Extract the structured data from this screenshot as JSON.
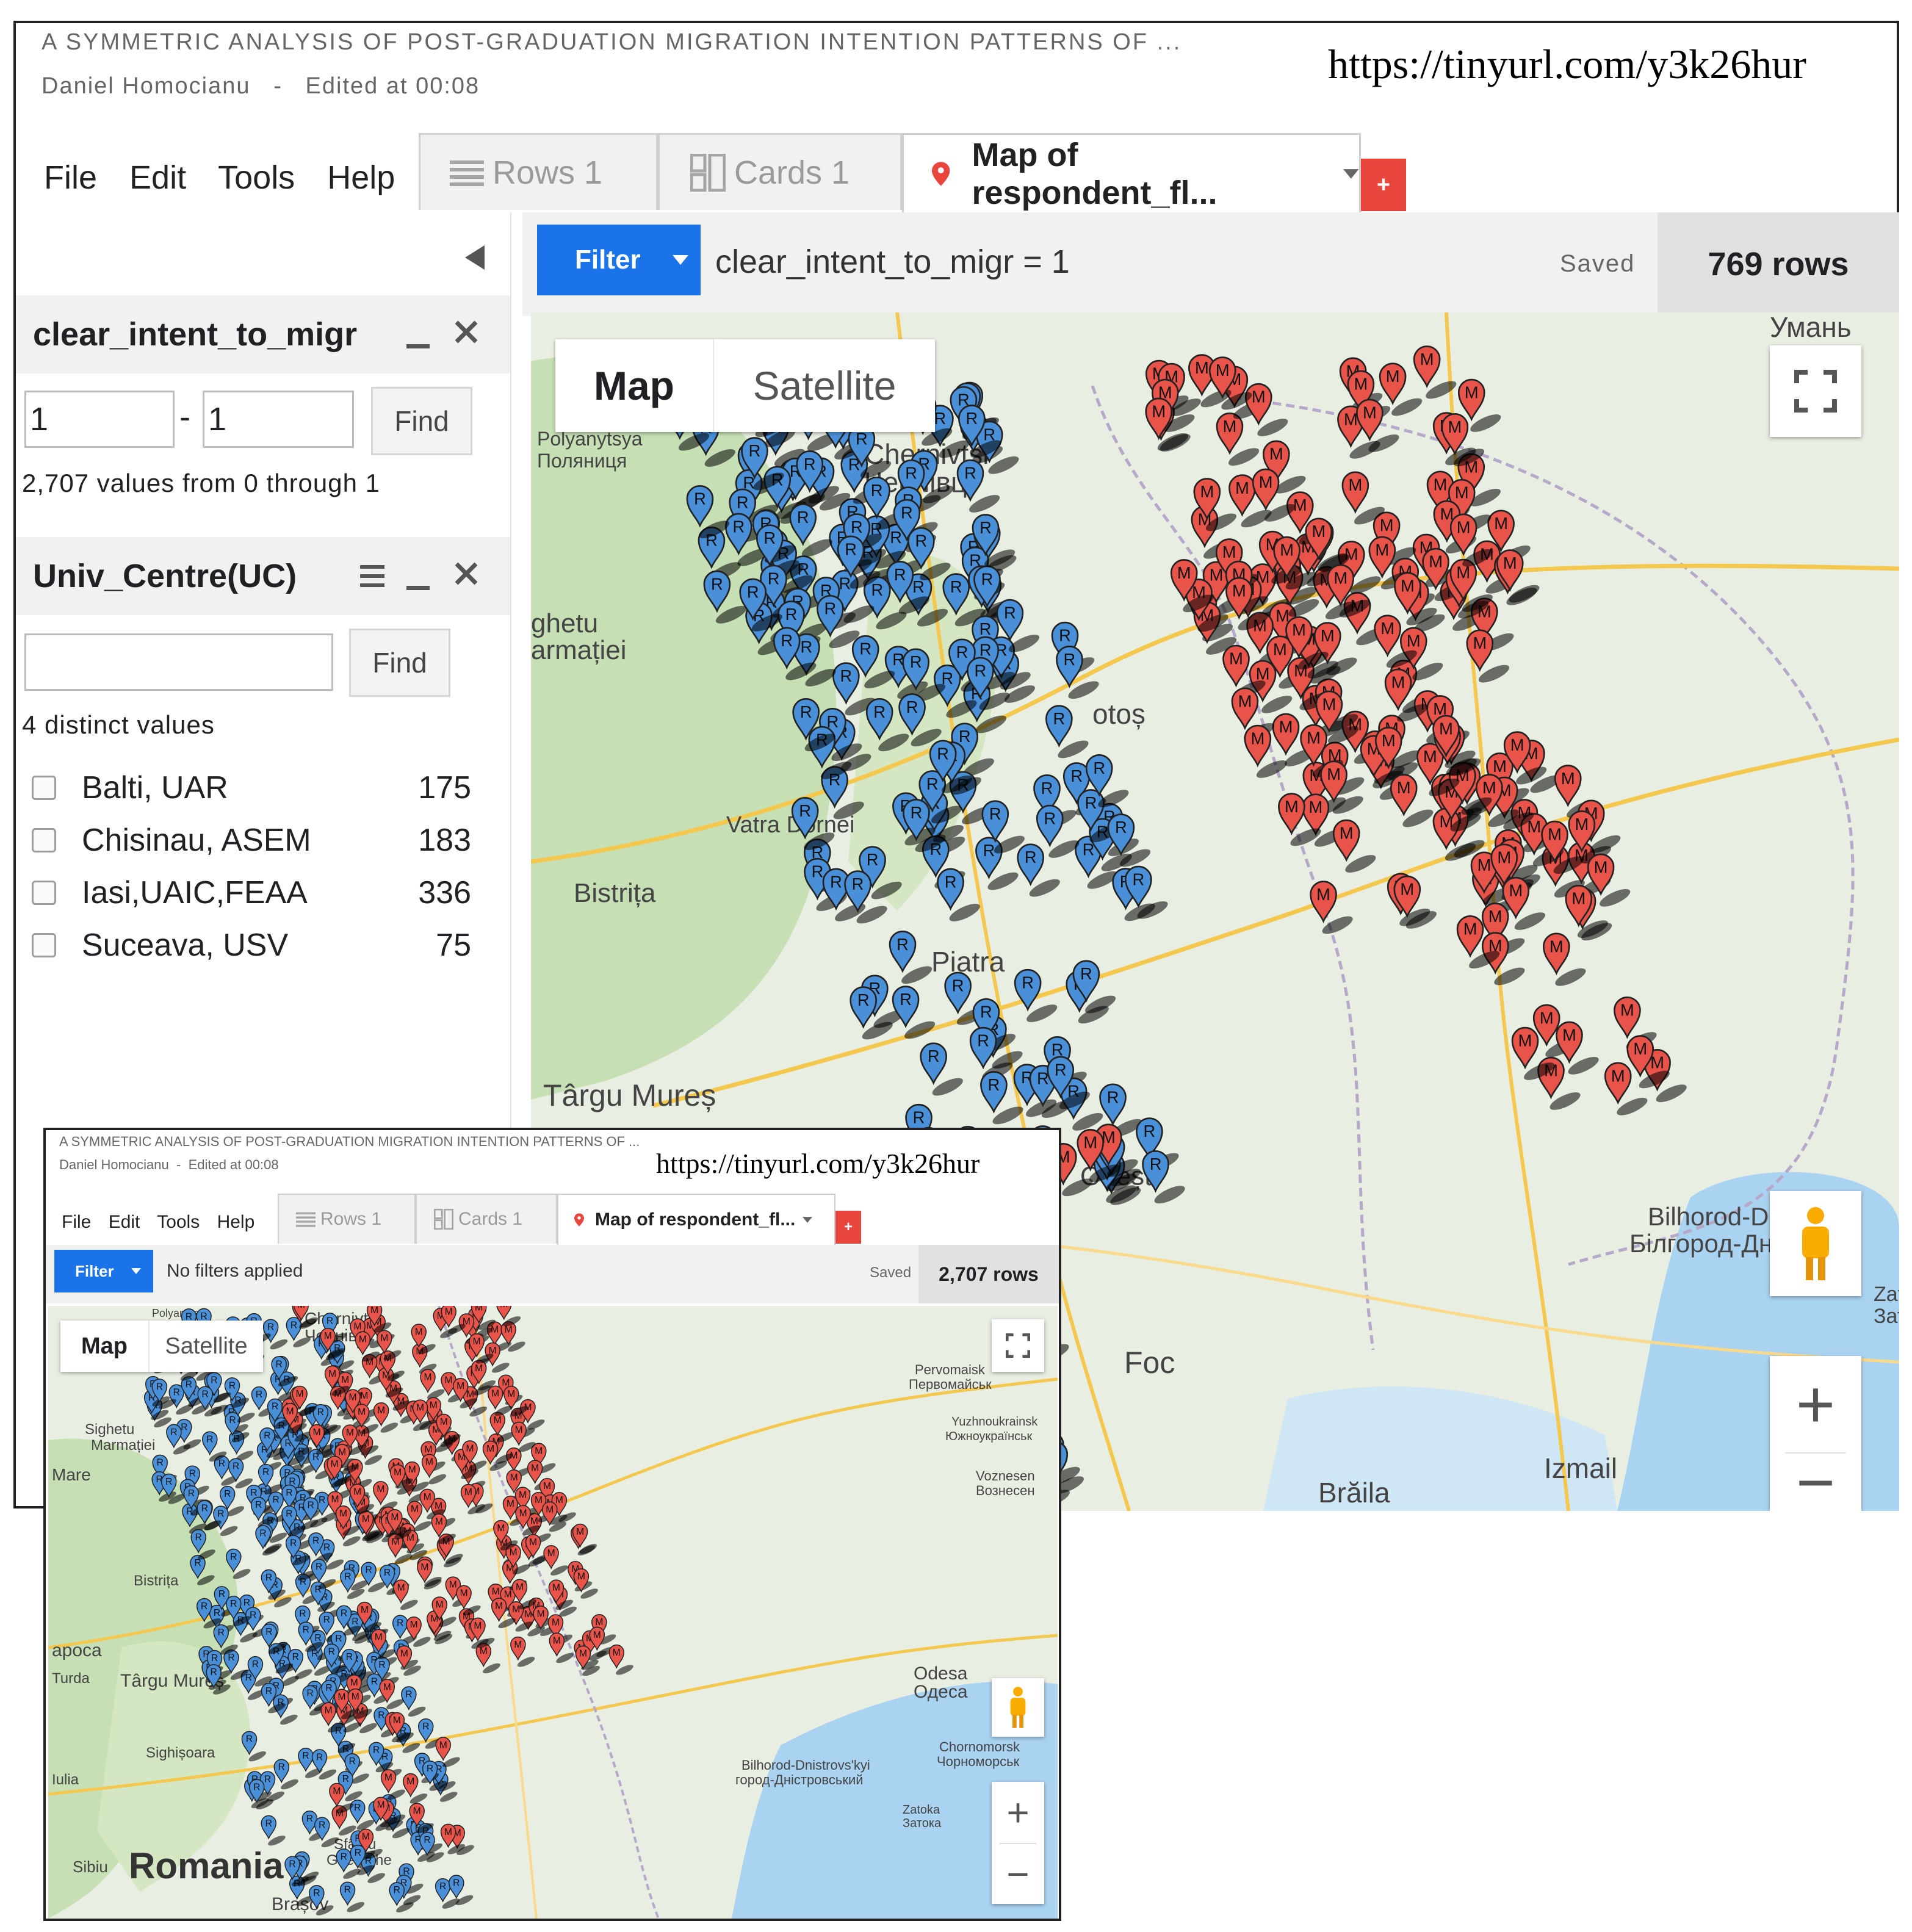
{
  "main": {
    "doc_title": "A SYMMETRIC ANALYSIS OF POST-GRADUATION MIGRATION INTENTION PATTERNS OF ...",
    "author": "Daniel Homocianu",
    "separator": "-",
    "edited": "Edited at 00:08",
    "url": "https://tinyurl.com/y3k26hur",
    "menu": [
      "File",
      "Edit",
      "Tools",
      "Help"
    ],
    "tabs": {
      "rows": "Rows 1",
      "cards": "Cards 1",
      "map": "Map of respondent_fl..."
    },
    "add_tab": "+",
    "filter_button": "Filter",
    "filter_expression": "clear_intent_to_migr = 1",
    "saved": "Saved",
    "row_count": "769 rows",
    "panel1": {
      "title": "clear_intent_to_migr",
      "min_value": "1",
      "dash": "-",
      "max_value": "1",
      "find": "Find",
      "summary": "2,707 values from 0 through 1"
    },
    "panel2": {
      "title": "Univ_Centre(UC)",
      "search_value": "",
      "find": "Find",
      "summary": "4 distinct values",
      "items": [
        {
          "label": "Balti, UAR",
          "count": "175"
        },
        {
          "label": "Chisinau, ASEM",
          "count": "183"
        },
        {
          "label": "Iasi,UAIC,FEAA",
          "count": "336"
        },
        {
          "label": "Suceava, USV",
          "count": "75"
        }
      ]
    },
    "map_toggle": {
      "map": "Map",
      "satellite": "Satellite"
    },
    "zoom_in": "+",
    "zoom_out": "−",
    "places": {
      "uman": "Умань",
      "polyanytsya": "Polyanytsya",
      "polyanytsya_cyr": "Поляниця",
      "chernivtsi": "Chernivtsi",
      "chernivtsi_cyr": "Чернівці",
      "sighetu": "ghetu",
      "marmatiei": "armației",
      "botosani": "otoș",
      "vatra": "Vatra Dornei",
      "bistrita": "Bistrița",
      "piatra": "Piatra",
      "targu": "Târgu Mureș",
      "onesti": "Onești",
      "focsani": "Foc",
      "braila": "Brăila",
      "izmail": "Izmail",
      "bilhorod": "Bilhorod-Dnistro",
      "bilhorod_cyr": "Білгород-Дністровс",
      "zato": "Zato",
      "zato_cyr": "Зато"
    }
  },
  "inset": {
    "doc_title": "A SYMMETRIC ANALYSIS OF POST-GRADUATION MIGRATION INTENTION PATTERNS OF ...",
    "author": "Daniel Homocianu",
    "separator": "-",
    "edited": "Edited at 00:08",
    "url": "https://tinyurl.com/y3k26hur",
    "menu": [
      "File",
      "Edit",
      "Tools",
      "Help"
    ],
    "tabs": {
      "rows": "Rows 1",
      "cards": "Cards 1",
      "map": "Map of respondent_fl..."
    },
    "add_tab": "+",
    "filter_button": "Filter",
    "filter_expression": "No filters applied",
    "saved": "Saved",
    "row_count": "2,707 rows",
    "map_toggle": {
      "map": "Map",
      "satellite": "Satellite"
    },
    "zoom_in": "+",
    "zoom_out": "−",
    "places": {
      "polyanytsya": "Polyanytsya",
      "chernivtsi": "Chernivtsi",
      "chernivtsi_cyr": "Чернівці",
      "sighetu": "Sighetu",
      "marmatiei": "Marmației",
      "mare": "Mare",
      "bistrita": "Bistrița",
      "apoca": "apoca",
      "turda": "Turda",
      "targu": "Târgu Mureș",
      "sighisoara": "Sighișoara",
      "iulia": "Iulia",
      "sibiu": "Sibiu",
      "romania": "Romania",
      "sfantu": "Sfântu",
      "gheorghe": "Gheorghe",
      "brasov": "Brașov",
      "pervomaisk": "Pervomaisk",
      "pervomaisk_cyr": "Первомайськ",
      "yuzhnoukrainsk": "Yuzhnoukrainsk",
      "yuzhnoukrainsk_cyr": "Южноукраїнськ",
      "voznesensk": "Voznesen",
      "voznesensk_cyr": "Вознесен",
      "odesa": "Odesa",
      "odesa_cyr": "Одеса",
      "chornomorsk": "Chornomorsk",
      "chornomorsk_cyr": "Чорноморськ",
      "bilhorod": "Bilhorod-Dnistrovs'kyi",
      "bilhorod_cyr": "город-Дністровський",
      "zatoka": "Zatoka",
      "zatoka_cyr": "Затока"
    }
  },
  "markers": {
    "r_label": "R",
    "m_label": "M",
    "r_color": "#4a90d9",
    "m_color": "#e8534a",
    "map_land": "#e9eee2",
    "map_forest": "#c6dfb4",
    "map_water": "#aad3f2"
  }
}
